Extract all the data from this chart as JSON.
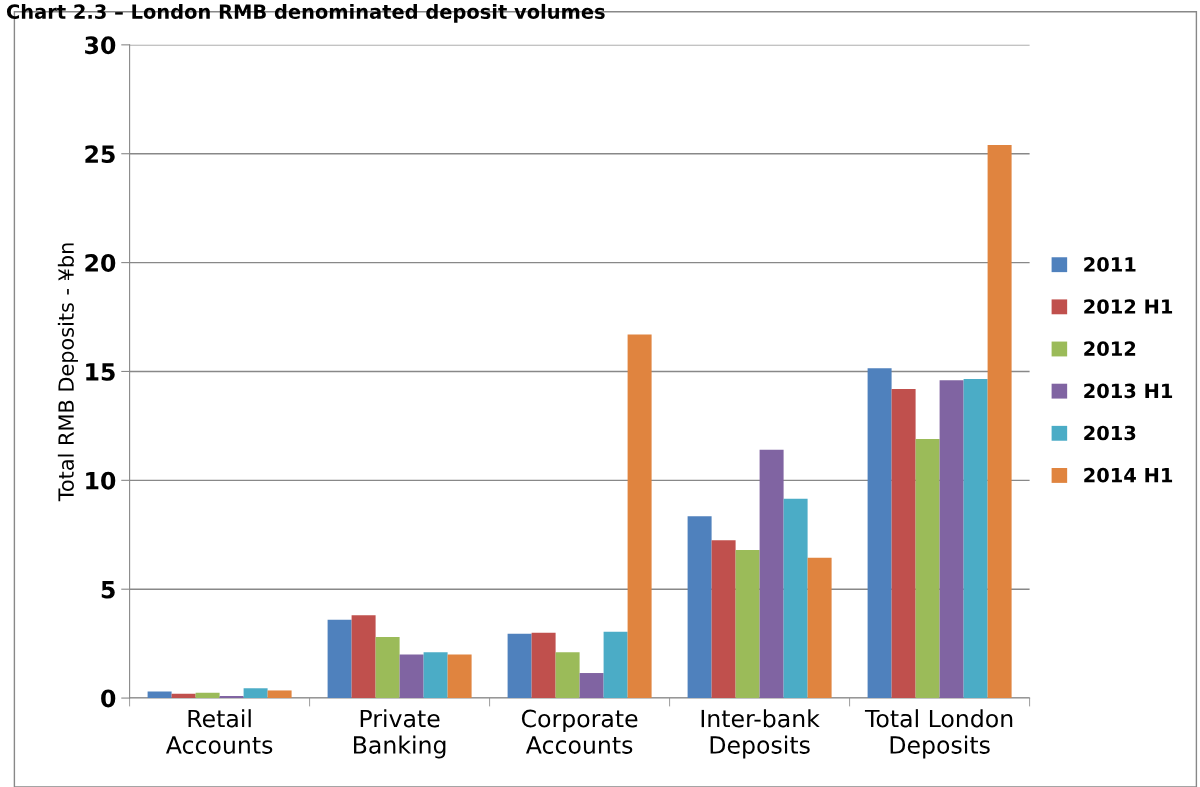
{
  "chart_data": {
    "type": "bar",
    "title": "Chart 2.3 – London RMB denominated deposit volumes",
    "ylabel": "Total RMB Deposits - ¥bn",
    "categories": [
      "Retail\nAccounts",
      "Private\nBanking",
      "Corporate\nAccounts",
      "Inter-bank\nDeposits",
      "Total London\nDeposits"
    ],
    "series": [
      {
        "name": "2011",
        "color": "#4f81bd",
        "values": [
          0.3,
          3.6,
          2.95,
          8.35,
          15.15
        ]
      },
      {
        "name": "2012 H1",
        "color": "#c0504d",
        "values": [
          0.2,
          3.8,
          3.0,
          7.25,
          14.2
        ]
      },
      {
        "name": "2012",
        "color": "#9bbb59",
        "values": [
          0.25,
          2.8,
          2.1,
          6.8,
          11.9
        ]
      },
      {
        "name": "2013 H1",
        "color": "#8064a2",
        "values": [
          0.1,
          2.0,
          1.15,
          11.4,
          14.6
        ]
      },
      {
        "name": "2013",
        "color": "#4bacc6",
        "values": [
          0.45,
          2.1,
          3.05,
          9.15,
          14.65
        ]
      },
      {
        "name": "2014 H1",
        "color": "#e0843f",
        "values": [
          0.35,
          2.0,
          16.7,
          6.45,
          25.4
        ]
      }
    ],
    "ylim": [
      0,
      30
    ],
    "yticks": [
      0,
      5,
      10,
      15,
      20,
      25,
      30
    ],
    "grid": "y",
    "legend": "right"
  }
}
